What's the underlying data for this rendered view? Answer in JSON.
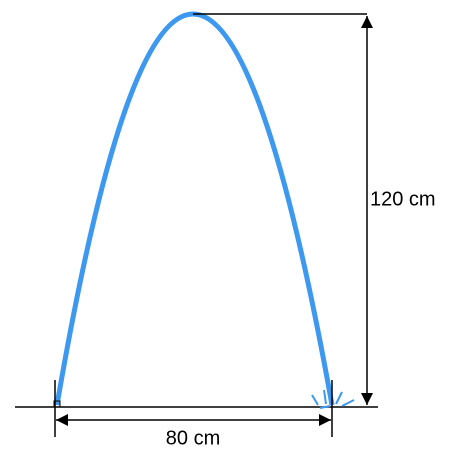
{
  "labels": {
    "height": "120 cm",
    "width": "80 cm"
  }
}
